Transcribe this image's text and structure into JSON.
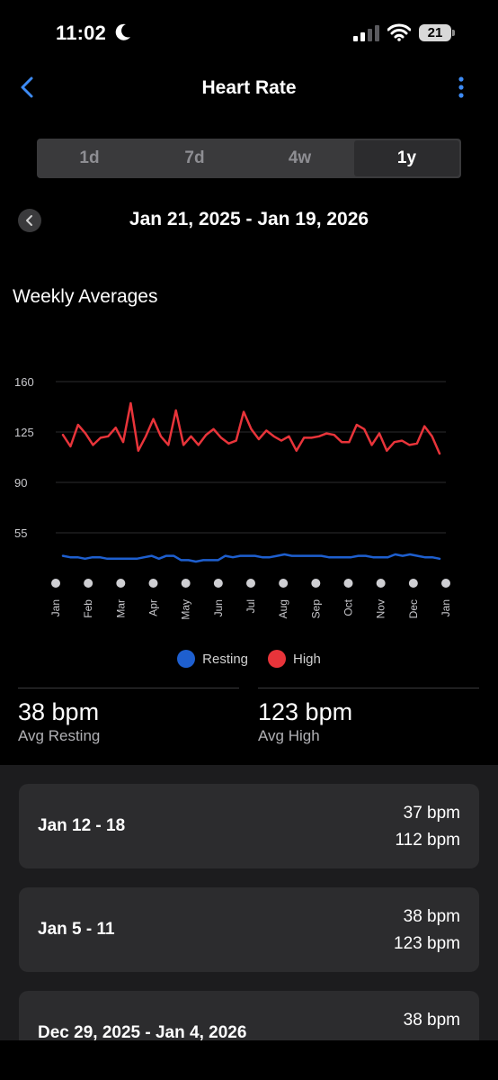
{
  "status": {
    "time": "11:02",
    "battery": "21"
  },
  "header": {
    "title": "Heart Rate"
  },
  "tabs": [
    {
      "label": "1d",
      "active": false
    },
    {
      "label": "7d",
      "active": false
    },
    {
      "label": "4w",
      "active": false
    },
    {
      "label": "1y",
      "active": true
    }
  ],
  "date_range": "Jan 21, 2025 - Jan 19, 2026",
  "section_title": "Weekly Averages",
  "colors": {
    "resting": "#1e5fcf",
    "high": "#e8343a",
    "background": "#000000"
  },
  "chart_data": {
    "type": "line",
    "title": "",
    "xlabel": "",
    "ylabel": "",
    "ylim": [
      20,
      160
    ],
    "yticks": [
      160,
      125,
      90,
      55
    ],
    "grid": true,
    "legend": "bottom-center",
    "months": [
      "Jan",
      "Feb",
      "Mar",
      "Apr",
      "May",
      "Jun",
      "Jul",
      "Aug",
      "Sep",
      "Oct",
      "Nov",
      "Dec",
      "Jan"
    ],
    "series": [
      {
        "name": "Resting",
        "color": "#1e5fcf",
        "values": [
          39,
          38,
          38,
          37,
          38,
          38,
          37,
          37,
          37,
          37,
          37,
          38,
          39,
          37,
          39,
          39,
          36,
          36,
          35,
          36,
          36,
          36,
          39,
          38,
          39,
          39,
          39,
          38,
          38,
          39,
          40,
          39,
          39,
          39,
          39,
          39,
          38,
          38,
          38,
          38,
          39,
          39,
          38,
          38,
          38,
          40,
          39,
          40,
          39,
          38,
          38,
          37
        ]
      },
      {
        "name": "High",
        "color": "#e8343a",
        "values": [
          123,
          115,
          130,
          124,
          116,
          121,
          122,
          128,
          118,
          145,
          112,
          122,
          134,
          122,
          116,
          140,
          116,
          122,
          116,
          123,
          127,
          121,
          117,
          119,
          139,
          127,
          120,
          126,
          122,
          119,
          122,
          112,
          121,
          121,
          122,
          124,
          123,
          118,
          118,
          130,
          127,
          116,
          124,
          112,
          118,
          119,
          116,
          117,
          129,
          122,
          110
        ]
      }
    ]
  },
  "summary": [
    {
      "value": "38 bpm",
      "label": "Avg Resting"
    },
    {
      "value": "123 bpm",
      "label": "Avg High"
    }
  ],
  "weeks": [
    {
      "range": "Jan 12 - 18",
      "resting": "37 bpm",
      "high": "112 bpm"
    },
    {
      "range": "Jan 5 - 11",
      "resting": "38 bpm",
      "high": "123 bpm"
    },
    {
      "range": "Dec 29, 2025 - Jan 4, 2026",
      "resting": "38 bpm",
      "high": ""
    }
  ]
}
